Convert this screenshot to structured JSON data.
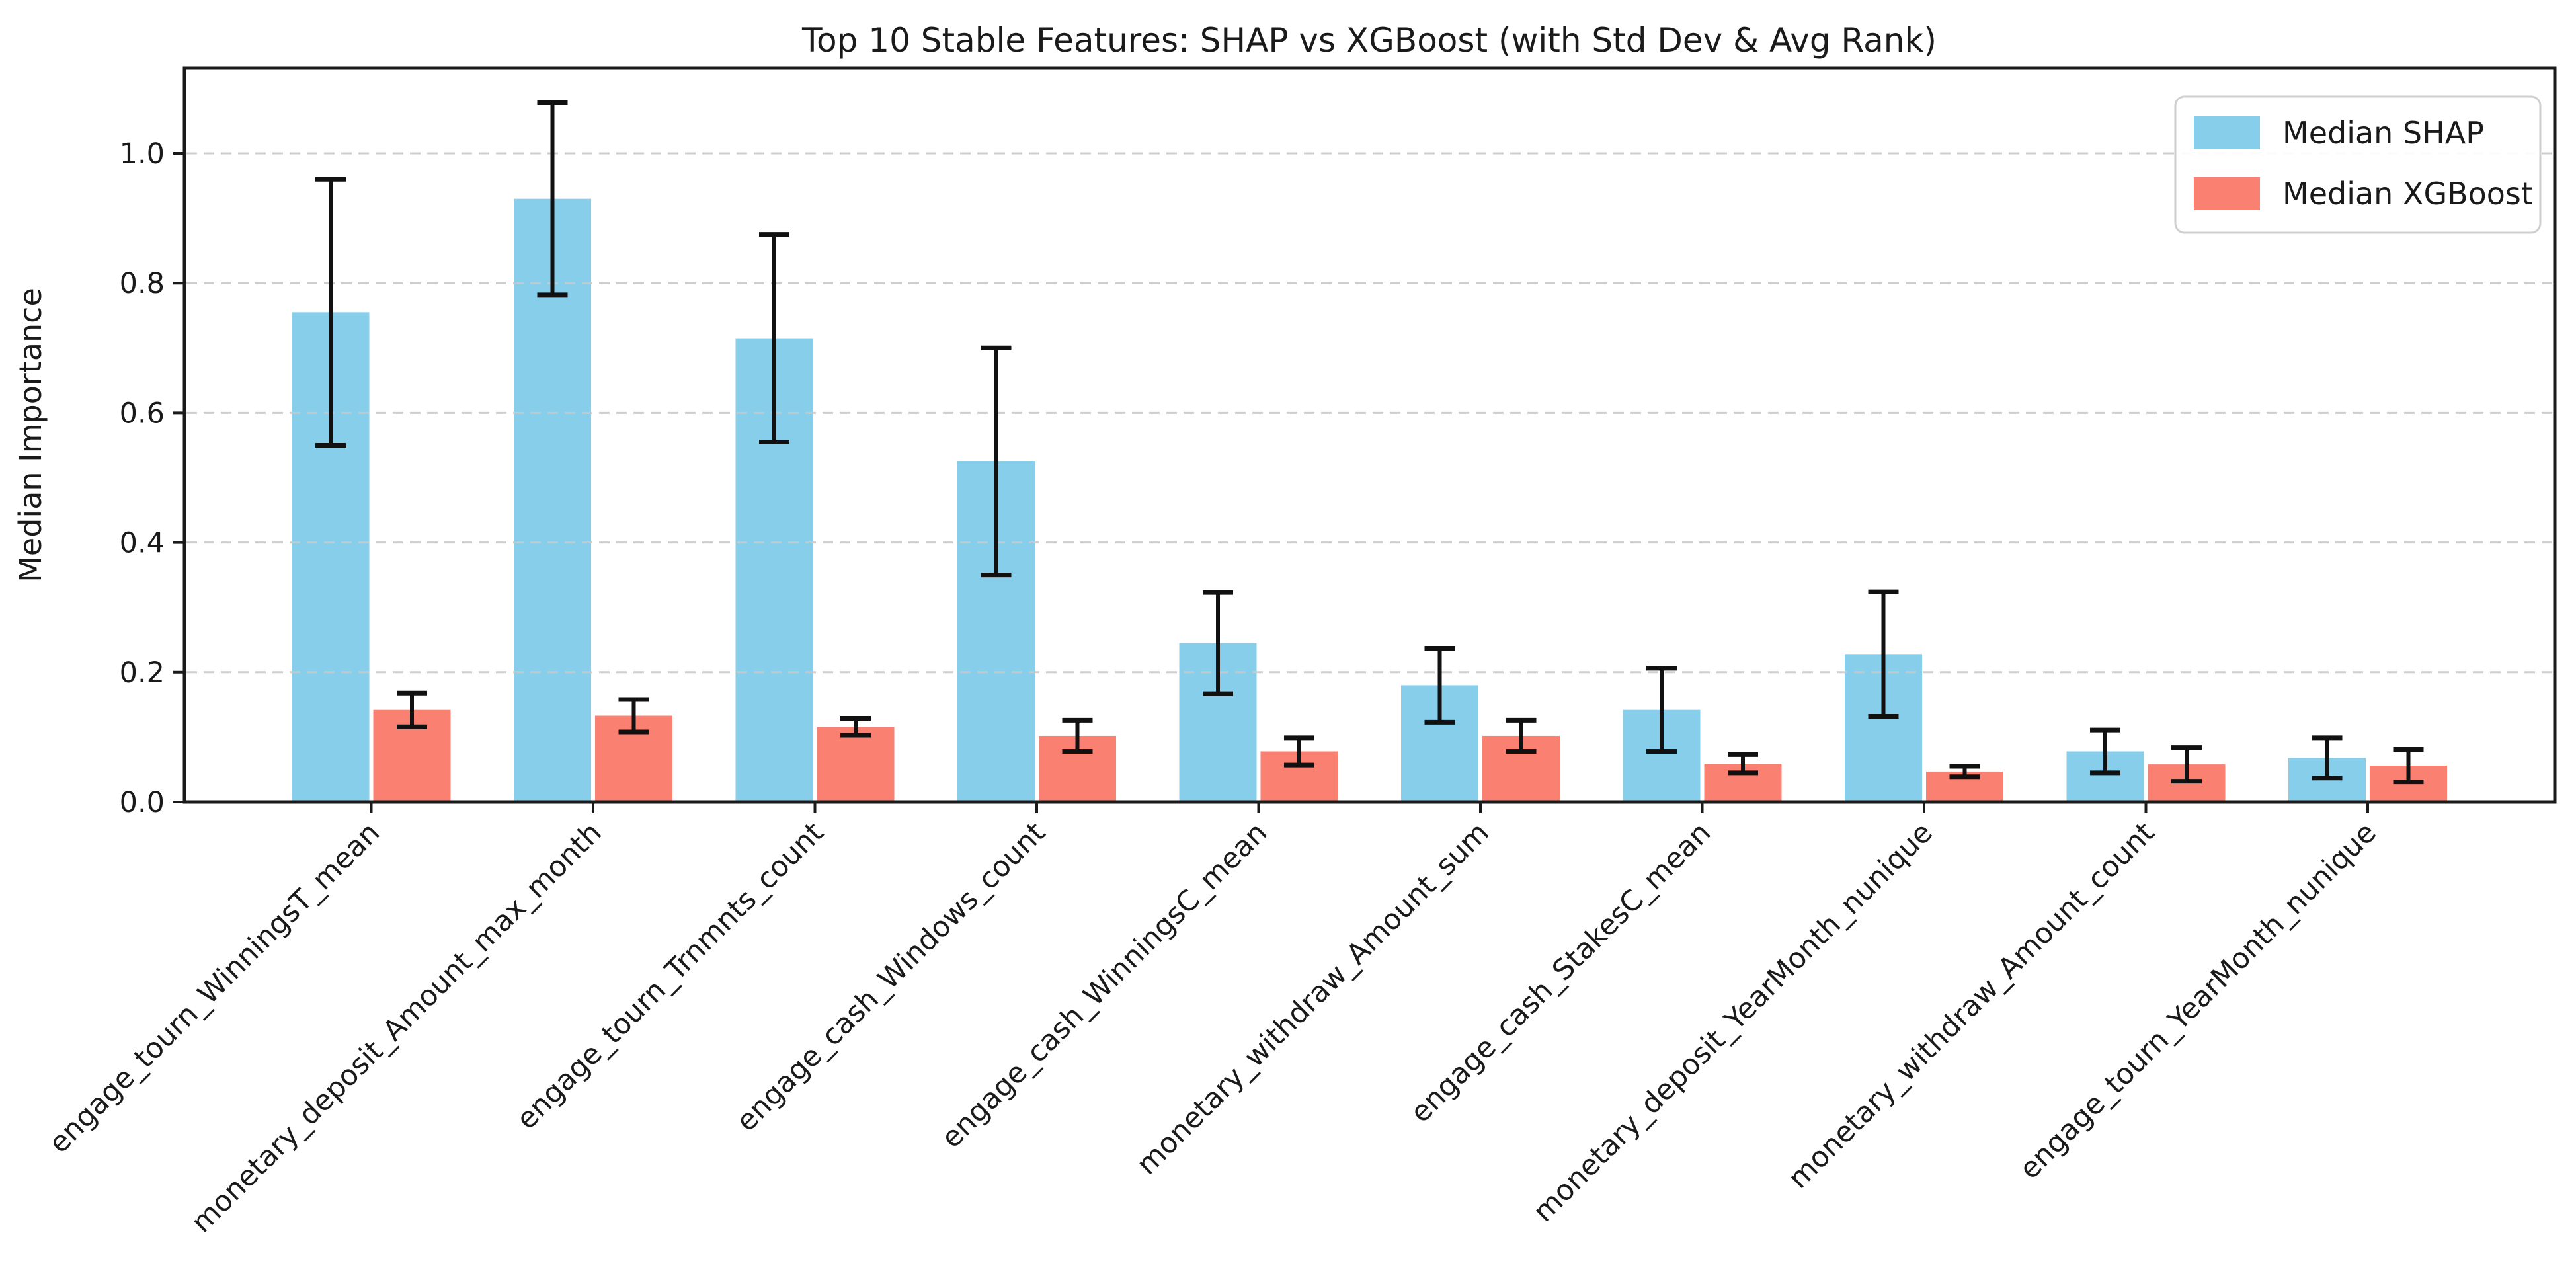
{
  "chart_data": {
    "type": "bar",
    "title": "Top 10 Stable Features: SHAP vs XGBoost (with Std Dev & Avg Rank)",
    "ylabel": "Median Importance",
    "xlabel": "",
    "categories": [
      "engage_tourn_WinningsT_mean",
      "monetary_deposit_Amount_max_month",
      "engage_tourn_Trnmnts_count",
      "engage_cash_Windows_count",
      "engage_cash_WinningsC_mean",
      "monetary_withdraw_Amount_sum",
      "engage_cash_StakesC_mean",
      "monetary_deposit_YearMonth_nunique",
      "monetary_withdraw_Amount_count",
      "engage_tourn_YearMonth_nunique"
    ],
    "series": [
      {
        "name": "Median SHAP",
        "color": "#87CEEB",
        "values": [
          0.755,
          0.93,
          0.715,
          0.525,
          0.245,
          0.18,
          0.142,
          0.228,
          0.078,
          0.068
        ],
        "errors": [
          0.205,
          0.148,
          0.16,
          0.175,
          0.078,
          0.057,
          0.064,
          0.096,
          0.033,
          0.031
        ]
      },
      {
        "name": "Median XGBoost",
        "color": "#FA8072",
        "values": [
          0.142,
          0.133,
          0.116,
          0.102,
          0.078,
          0.102,
          0.059,
          0.047,
          0.058,
          0.056
        ],
        "errors": [
          0.026,
          0.025,
          0.013,
          0.024,
          0.021,
          0.024,
          0.014,
          0.008,
          0.026,
          0.025
        ]
      }
    ],
    "error_bar_color": "#111111",
    "yticks": [
      {
        "v": 0.0,
        "label": "0.0"
      },
      {
        "v": 0.2,
        "label": "0.2"
      },
      {
        "v": 0.4,
        "label": "0.4"
      },
      {
        "v": 0.6,
        "label": "0.6"
      },
      {
        "v": 0.8,
        "label": "0.8"
      },
      {
        "v": 1.0,
        "label": "1.0"
      }
    ],
    "ylim": [
      0,
      1.13
    ],
    "x_tick_rotation_deg": 45,
    "grid": {
      "axis": "y",
      "linestyle": "dashed",
      "color": "#c9c9c9"
    },
    "legend": {
      "location": "upper right"
    }
  }
}
